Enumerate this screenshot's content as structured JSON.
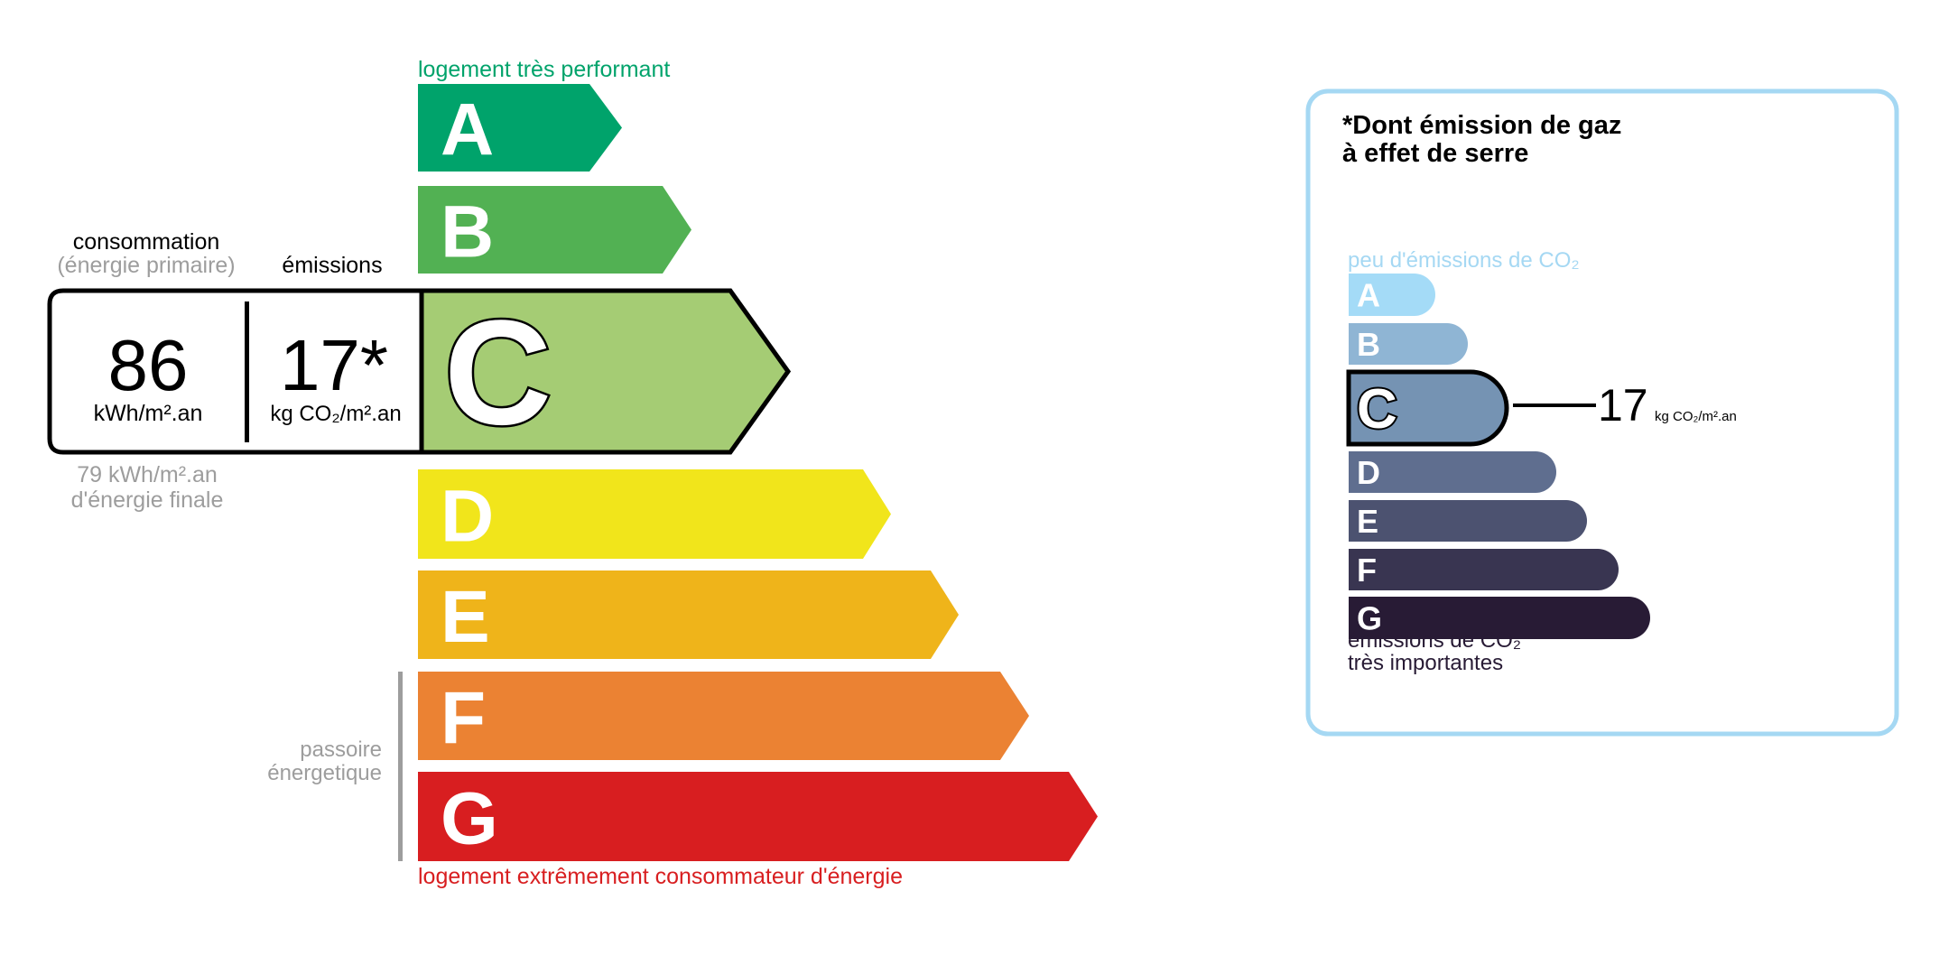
{
  "energy": {
    "top_label": "logement très performant",
    "bottom_label": "logement extrêmement consommateur d'énergie",
    "passoire_label": [
      "passoire",
      "énergetique"
    ],
    "current_class": "C",
    "classes": [
      {
        "letter": "A",
        "color": "#00a36b"
      },
      {
        "letter": "B",
        "color": "#52b153"
      },
      {
        "letter": "C",
        "color": "#a5cc74"
      },
      {
        "letter": "D",
        "color": "#f1e51b"
      },
      {
        "letter": "E",
        "color": "#efb41a"
      },
      {
        "letter": "F",
        "color": "#eb8233"
      },
      {
        "letter": "G",
        "color": "#d81e20"
      }
    ],
    "top_label_color": "#00a36b",
    "bottom_label_color": "#d81e20"
  },
  "consumption": {
    "header": "consommation",
    "subheader": "(énergie primaire)",
    "value": "86",
    "unit": "kWh/m².an",
    "final_value": "79 kWh/m².an",
    "final_label": "d'énergie finale"
  },
  "emissions": {
    "header": "émissions",
    "value": "17*",
    "unit": "kg CO₂/m².an"
  },
  "ghg": {
    "title_line1": "*Dont émission de gaz",
    "title_line2": "à effet de serre",
    "top_label": "peu d'émissions de CO₂",
    "bottom_label_line1": "émissions de CO₂",
    "bottom_label_line2": "très importantes",
    "current_class": "C",
    "value": "17",
    "unit": "kg CO₂/m².an",
    "border_color": "#a5d8f3",
    "classes": [
      {
        "letter": "A",
        "color": "#a4dbf7"
      },
      {
        "letter": "B",
        "color": "#8fb5d4"
      },
      {
        "letter": "C",
        "color": "#7593b3"
      },
      {
        "letter": "D",
        "color": "#5f6e8f"
      },
      {
        "letter": "E",
        "color": "#4c5270"
      },
      {
        "letter": "F",
        "color": "#393551"
      },
      {
        "letter": "G",
        "color": "#281b35"
      }
    ]
  }
}
